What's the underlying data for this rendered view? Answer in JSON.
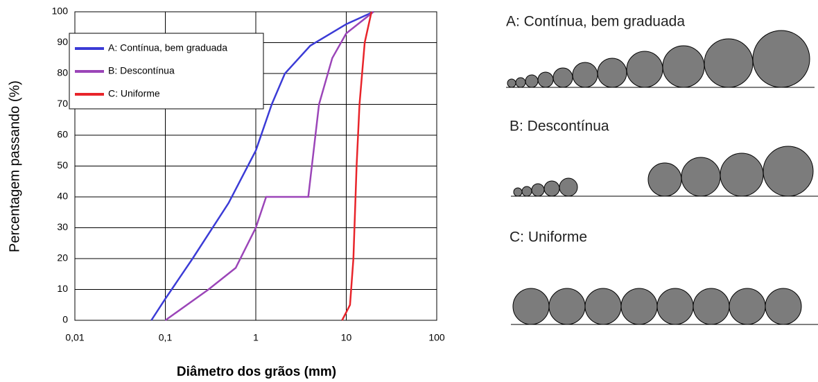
{
  "chart_data": {
    "type": "line",
    "xlabel": "Diâmetro dos grãos (mm)",
    "ylabel": "Percentagem passando (%)",
    "xscale": "log",
    "xlim": [
      0.01,
      100
    ],
    "xticks": [
      {
        "value": 0.01,
        "label": "0,01"
      },
      {
        "value": 0.1,
        "label": "0,1"
      },
      1,
      10,
      100
    ],
    "ylim": [
      0,
      100
    ],
    "yticks": [
      0,
      10,
      20,
      30,
      40,
      50,
      60,
      70,
      80,
      90,
      100
    ],
    "grid": true,
    "legend": "upper left",
    "series": [
      {
        "name": "A: Contínua, bem graduada",
        "color": "#3b3bd6",
        "x": [
          0.07,
          0.1,
          0.2,
          0.5,
          1,
          1.5,
          2.1,
          4,
          10,
          20
        ],
        "values": [
          0,
          7,
          20,
          38,
          55,
          70,
          80,
          89,
          96,
          100
        ]
      },
      {
        "name": "B: Descontínua",
        "color": "#9b45b8",
        "x": [
          0.1,
          0.3,
          0.6,
          1,
          1.3,
          3.8,
          5,
          7,
          10,
          20
        ],
        "values": [
          0,
          10,
          17,
          30,
          40,
          40,
          70,
          85,
          93,
          100
        ]
      },
      {
        "name": "C: Uniforme",
        "color": "#e8242a",
        "x": [
          9,
          11,
          12,
          13,
          14,
          16,
          19
        ],
        "values": [
          0,
          5,
          20,
          50,
          70,
          90,
          100
        ]
      }
    ]
  },
  "diagram": {
    "titles": [
      "A: Contínua, bem graduada",
      "B: Descontínua",
      "C: Uniforme"
    ]
  }
}
